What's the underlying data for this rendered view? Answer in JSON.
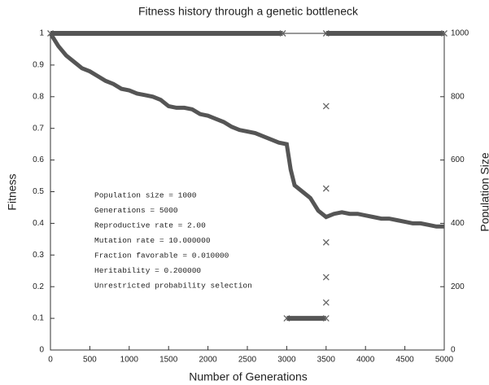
{
  "chart_data": {
    "type": "line",
    "title": "Fitness history through a genetic bottleneck",
    "x_label": "Number of Generations",
    "y_label": "Fitness",
    "y2_label": "Population Size",
    "annotations": [
      "Population size = 1000",
      "Generations = 5000",
      "Reproductive rate = 2.00",
      "Mutation rate = 10.000000",
      "Fraction favorable = 0.010000",
      "Heritability = 0.200000",
      "Unrestricted probability selection"
    ],
    "xlim": [
      0,
      5000
    ],
    "xticks": [
      0,
      500,
      1000,
      1500,
      2000,
      2500,
      3000,
      3500,
      4000,
      4500,
      5000
    ],
    "ylim": [
      0,
      1
    ],
    "yticks": [
      0,
      0.1,
      0.2,
      0.3,
      0.4,
      0.5,
      0.6,
      0.7,
      0.8,
      0.9,
      1
    ],
    "y2lim": [
      0,
      1000
    ],
    "y2ticks": [
      0,
      200,
      400,
      600,
      800,
      1000
    ],
    "series": [
      {
        "name": "Fitness",
        "color": "#555555",
        "x": [
          0,
          100,
          200,
          300,
          400,
          500,
          600,
          700,
          800,
          900,
          1000,
          1100,
          1200,
          1300,
          1400,
          1500,
          1600,
          1700,
          1800,
          1900,
          2000,
          2100,
          2200,
          2300,
          2400,
          2500,
          2600,
          2700,
          2800,
          2900,
          3000,
          3050,
          3100,
          3200,
          3300,
          3400,
          3500,
          3600,
          3700,
          3800,
          3900,
          4000,
          4100,
          4200,
          4300,
          4400,
          4500,
          4600,
          4700,
          4800,
          4900,
          5000
        ],
        "values": [
          1,
          0.96,
          0.93,
          0.91,
          0.89,
          0.88,
          0.865,
          0.85,
          0.84,
          0.825,
          0.82,
          0.81,
          0.805,
          0.8,
          0.79,
          0.77,
          0.765,
          0.765,
          0.76,
          0.745,
          0.74,
          0.73,
          0.72,
          0.705,
          0.695,
          0.69,
          0.685,
          0.675,
          0.665,
          0.655,
          0.65,
          0.57,
          0.52,
          0.5,
          0.48,
          0.44,
          0.42,
          0.43,
          0.435,
          0.43,
          0.43,
          0.425,
          0.42,
          0.415,
          0.415,
          0.41,
          0.405,
          0.4,
          0.4,
          0.395,
          0.39,
          0.39
        ]
      },
      {
        "name": "Population Size",
        "color": "#555555",
        "axis": "y2",
        "x": [
          0,
          2950,
          3000,
          3500,
          3500,
          3500,
          3500,
          3500,
          3500,
          3500,
          5000
        ],
        "values": [
          1000,
          1000,
          100,
          100,
          770,
          510,
          340,
          230,
          150,
          1000,
          1000
        ]
      }
    ]
  }
}
